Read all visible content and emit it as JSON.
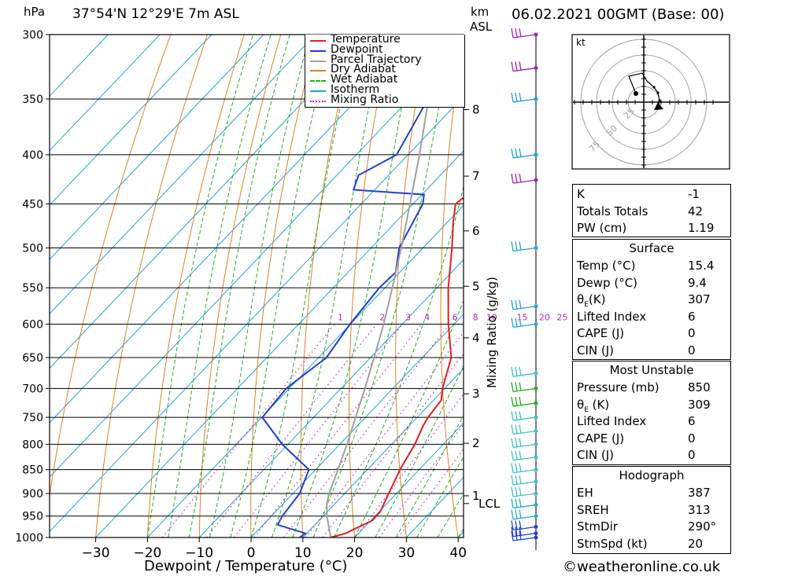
{
  "header": {
    "location": "37°54'N  12°29'E  7m  ASL",
    "datetime": "06.02.2021  00GMT  (Base: 00)",
    "hpa_unit": "hPa",
    "km_unit": "km",
    "asl_unit": "ASL"
  },
  "legend": [
    {
      "label": "Temperature",
      "color": "#e02020",
      "style": "solid"
    },
    {
      "label": "Dewpoint",
      "color": "#2040d0",
      "style": "solid"
    },
    {
      "label": "Parcel Trajectory",
      "color": "#a0a0a0",
      "style": "solid"
    },
    {
      "label": "Dry Adiabat",
      "color": "#e08020",
      "style": "solid"
    },
    {
      "label": "Wet Adiabat",
      "color": "#20b020",
      "style": "dashed"
    },
    {
      "label": "Isotherm",
      "color": "#20a0e0",
      "style": "solid"
    },
    {
      "label": "Mixing Ratio",
      "color": "#c020c0",
      "style": "dotted"
    }
  ],
  "stats_top": [
    {
      "label": "K",
      "value": "-1"
    },
    {
      "label": "Totals Totals",
      "value": "42"
    },
    {
      "label": "PW (cm)",
      "value": "1.19"
    }
  ],
  "surface": {
    "title": "Surface",
    "rows": [
      {
        "label": "Temp (°C)",
        "value": "15.4"
      },
      {
        "label": "Dewp (°C)",
        "value": "9.4"
      },
      {
        "label": "θ",
        "sub": "E",
        "suffix": "(K)",
        "value": "307"
      },
      {
        "label": "Lifted Index",
        "value": "6"
      },
      {
        "label": "CAPE (J)",
        "value": "0"
      },
      {
        "label": "CIN (J)",
        "value": "0"
      }
    ]
  },
  "most_unstable": {
    "title": "Most Unstable",
    "rows": [
      {
        "label": "Pressure (mb)",
        "value": "850"
      },
      {
        "label": "θ",
        "sub": "E",
        "suffix": " (K)",
        "value": "309"
      },
      {
        "label": "Lifted Index",
        "value": "6"
      },
      {
        "label": "CAPE (J)",
        "value": "0"
      },
      {
        "label": "CIN (J)",
        "value": "0"
      }
    ]
  },
  "hodograph_stats": {
    "title": "Hodograph",
    "rows": [
      {
        "label": "EH",
        "value": "387"
      },
      {
        "label": "SREH",
        "value": "313"
      },
      {
        "label": "StmDir",
        "value": "290°"
      },
      {
        "label": "StmSpd (kt)",
        "value": "20"
      }
    ]
  },
  "hodograph_plot": {
    "unit": "kt",
    "rings": [
      "25",
      "50",
      "75"
    ]
  },
  "copyright": "©weatheronline.co.uk",
  "chart_data": {
    "type": "line",
    "xlabel": "Dewpoint / Temperature (°C)",
    "ylabel_right": "Mixing Ratio (g/kg)",
    "xlim": [
      -40,
      40
    ],
    "ylim": [
      1000,
      300
    ],
    "x_ticks": [
      "−30",
      "−20",
      "−10",
      "0",
      "10",
      "20",
      "30",
      "40"
    ],
    "x_tick_values": [
      -30,
      -20,
      -10,
      0,
      10,
      20,
      30,
      40
    ],
    "pressure_ticks": [
      "300",
      "350",
      "400",
      "450",
      "500",
      "550",
      "600",
      "650",
      "700",
      "750",
      "800",
      "850",
      "900",
      "950",
      "1000"
    ],
    "pressure_tick_values": [
      300,
      350,
      400,
      450,
      500,
      550,
      600,
      650,
      700,
      750,
      800,
      850,
      900,
      950,
      1000
    ],
    "km_ticks": [
      {
        "label": "8",
        "p": 359
      },
      {
        "label": "7",
        "p": 421
      },
      {
        "label": "6",
        "p": 480
      },
      {
        "label": "5",
        "p": 548
      },
      {
        "label": "4",
        "p": 620
      },
      {
        "label": "3",
        "p": 709
      },
      {
        "label": "2",
        "p": 798
      },
      {
        "label": "1",
        "p": 905
      },
      {
        "label": "LCL",
        "p": 922
      }
    ],
    "mixing_ratio_labels": [
      "1",
      "2",
      "3",
      "4",
      "6",
      "8",
      "10",
      "15",
      "20",
      "25"
    ],
    "mixing_ratio_values": [
      1,
      2,
      3,
      4,
      6,
      8,
      10,
      15,
      20,
      25
    ],
    "mixing_ratio_label_p": 590,
    "series": [
      {
        "name": "Temperature",
        "color": "#e02020",
        "points": [
          [
            1000,
            15.4
          ],
          [
            990,
            17.5
          ],
          [
            960,
            20.3
          ],
          [
            940,
            20.2
          ],
          [
            900,
            18.5
          ],
          [
            850,
            16.3
          ],
          [
            800,
            14.5
          ],
          [
            765,
            12.7
          ],
          [
            750,
            12.1
          ],
          [
            720,
            11.5
          ],
          [
            700,
            9.6
          ],
          [
            650,
            5.6
          ],
          [
            600,
            -1.1
          ],
          [
            550,
            -7.8
          ],
          [
            500,
            -14.4
          ],
          [
            470,
            -18.9
          ],
          [
            450,
            -21.8
          ],
          [
            440,
            -21.2
          ],
          [
            420,
            -20.7
          ],
          [
            400,
            -24.3
          ],
          [
            350,
            -31.8
          ],
          [
            330,
            -36.3
          ],
          [
            300,
            -41.4
          ]
        ]
      },
      {
        "name": "Dewpoint",
        "color": "#2040d0",
        "points": [
          [
            1000,
            9.4
          ],
          [
            990,
            9.7
          ],
          [
            970,
            2.8
          ],
          [
            950,
            2.1
          ],
          [
            900,
            1.3
          ],
          [
            850,
            -1.3
          ],
          [
            800,
            -11.1
          ],
          [
            750,
            -19.9
          ],
          [
            700,
            -20.6
          ],
          [
            650,
            -18.5
          ],
          [
            600,
            -20.1
          ],
          [
            550,
            -21.1
          ],
          [
            530,
            -20.8
          ],
          [
            500,
            -24.6
          ],
          [
            450,
            -28.1
          ],
          [
            440,
            -29.6
          ],
          [
            435,
            -44.1
          ],
          [
            420,
            -45.8
          ],
          [
            400,
            -42.2
          ],
          [
            350,
            -46.4
          ],
          [
            300,
            -54.1
          ]
        ]
      },
      {
        "name": "Parcel Trajectory",
        "color": "#a0a0a0",
        "points": [
          [
            1000,
            15.4
          ],
          [
            950,
            10.7
          ],
          [
            922,
            8.4
          ],
          [
            900,
            7.0
          ],
          [
            850,
            4.3
          ],
          [
            800,
            1.4
          ],
          [
            750,
            -1.9
          ],
          [
            700,
            -5.4
          ],
          [
            650,
            -9.3
          ],
          [
            600,
            -13.6
          ],
          [
            550,
            -18.6
          ],
          [
            500,
            -24.2
          ],
          [
            450,
            -30.6
          ],
          [
            400,
            -37.8
          ],
          [
            350,
            -46.3
          ],
          [
            310,
            -53.9
          ]
        ]
      }
    ],
    "wind_barbs": [
      {
        "p": 1000,
        "color": "#2040d0"
      },
      {
        "p": 990,
        "color": "#2040d0"
      },
      {
        "p": 975,
        "color": "#2040d0"
      },
      {
        "p": 950,
        "color": "#20b0c0"
      },
      {
        "p": 925,
        "color": "#20b0c0"
      },
      {
        "p": 900,
        "color": "#40c0c0"
      },
      {
        "p": 875,
        "color": "#40c0c0"
      },
      {
        "p": 850,
        "color": "#40c0c0"
      },
      {
        "p": 825,
        "color": "#40c0c0"
      },
      {
        "p": 800,
        "color": "#40c0c0"
      },
      {
        "p": 775,
        "color": "#40c0c0"
      },
      {
        "p": 750,
        "color": "#40c0c0"
      },
      {
        "p": 725,
        "color": "#20b020"
      },
      {
        "p": 700,
        "color": "#20b020"
      },
      {
        "p": 675,
        "color": "#40c0c0"
      },
      {
        "p": 600,
        "color": "#20a0e0"
      },
      {
        "p": 575,
        "color": "#20a0e0"
      },
      {
        "p": 500,
        "color": "#20a0e0"
      },
      {
        "p": 425,
        "color": "#a020c0"
      },
      {
        "p": 400,
        "color": "#20a0e0"
      },
      {
        "p": 350,
        "color": "#20a0e0"
      },
      {
        "p": 325,
        "color": "#a020c0"
      },
      {
        "p": 300,
        "color": "#a020c0"
      }
    ]
  }
}
